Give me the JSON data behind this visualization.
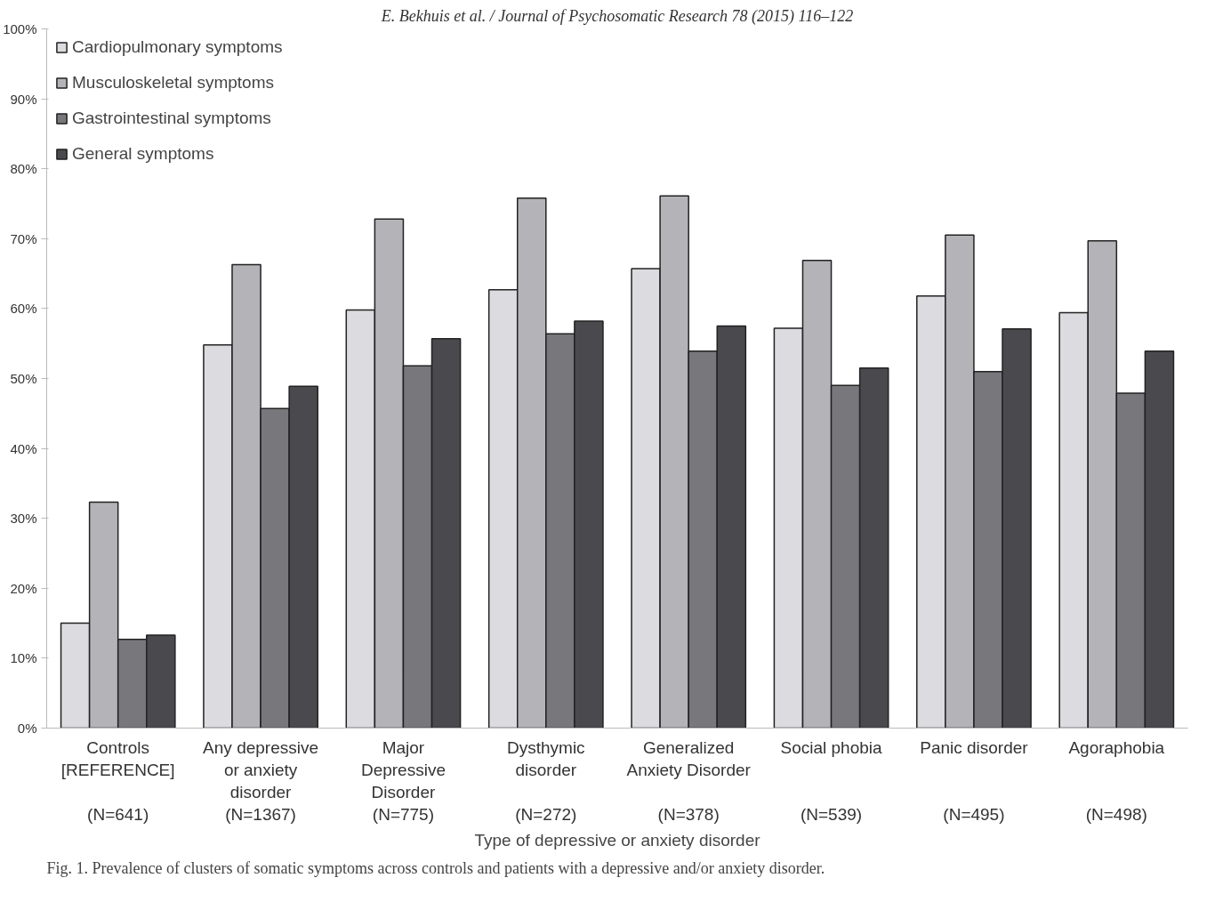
{
  "chart_data": {
    "type": "bar",
    "title": "E. Bekhuis et al. / Journal of Psychosomatic Research 78 (2015) 116–122",
    "xlabel": "Type of depressive or anxiety disorder",
    "categories": [
      "Controls\n[REFERENCE]\n\n(N=641)",
      "Any depressive\nor anxiety\ndisorder\n(N=1367)",
      "Major\nDepressive\nDisorder\n(N=775)",
      "Dysthymic\ndisorder\n\n(N=272)",
      "Generalized\nAnxiety Disorder\n\n(N=378)",
      "Social phobia\n\n\n(N=539)",
      "Panic disorder\n\n\n(N=495)",
      "Agoraphobia\n\n\n(N=498)"
    ],
    "series": [
      {
        "name": "Cardiopulmonary symptoms",
        "color": "#dcdce0",
        "values": [
          15,
          54.8,
          59.8,
          62.7,
          65.7,
          57.2,
          61.8,
          59.4
        ]
      },
      {
        "name": "Musculoskeletal symptoms",
        "color": "#b4b4b8",
        "values": [
          32.3,
          66.3,
          72.8,
          75.8,
          76.1,
          66.9,
          70.5,
          69.7
        ]
      },
      {
        "name": "Gastrointestinal symptoms",
        "color": "#78787c",
        "values": [
          12.7,
          45.7,
          51.8,
          56.4,
          53.9,
          49,
          51,
          47.9
        ]
      },
      {
        "name": "General symptoms",
        "color": "#4a4a4e",
        "values": [
          13.3,
          48.9,
          55.7,
          58.2,
          57.5,
          51.5,
          57.1,
          53.9
        ]
      }
    ],
    "ylim": [
      0,
      100
    ],
    "yticks": [
      {
        "value": 0,
        "label": "0%"
      },
      {
        "value": 10,
        "label": "10%"
      },
      {
        "value": 20,
        "label": "20%"
      },
      {
        "value": 30,
        "label": "30%"
      },
      {
        "value": 40,
        "label": "40%"
      },
      {
        "value": 50,
        "label": "50%"
      },
      {
        "value": 60,
        "label": "60%"
      },
      {
        "value": 70,
        "label": "70%"
      },
      {
        "value": 80,
        "label": "80%"
      },
      {
        "value": 90,
        "label": "90%"
      },
      {
        "value": 100,
        "label": "100%"
      }
    ],
    "legend": "top left",
    "grid": false,
    "annotations": [
      "Fig. 1. Prevalence of clusters of somatic symptoms across controls and patients with a depressive and/or anxiety disorder."
    ]
  }
}
